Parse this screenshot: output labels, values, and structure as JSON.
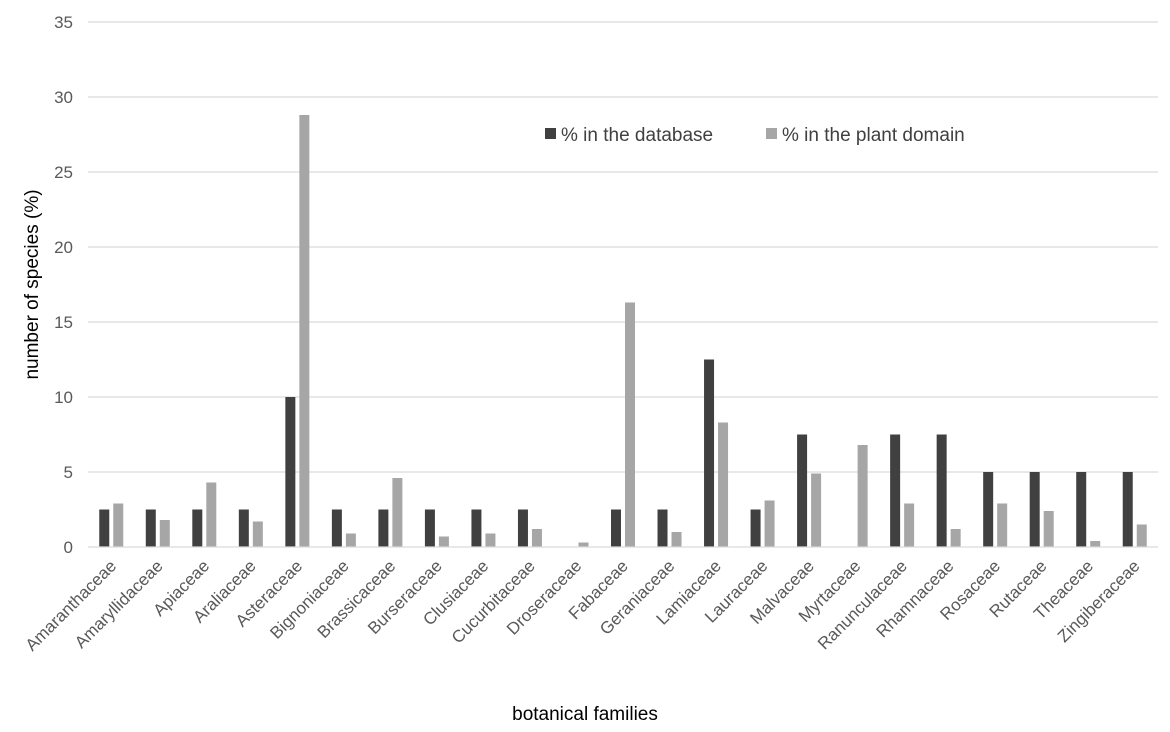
{
  "chart_data": {
    "type": "bar",
    "title": "",
    "xlabel": "botanical families",
    "ylabel": "number of species (%)",
    "ylim": [
      0,
      35
    ],
    "yticks": [
      0,
      5,
      10,
      15,
      20,
      25,
      30,
      35
    ],
    "grid": true,
    "legend_position": "top-right",
    "categories": [
      "Amaranthaceae",
      "Amaryllidaceae",
      "Apiaceae",
      "Araliaceae",
      "Asteraceae",
      "Bignoniaceae",
      "Brassicaceae",
      "Burseraceae",
      "Clusiaceae",
      "Cucurbitaceae",
      "Droseraceae",
      "Fabaceae",
      "Geraniaceae",
      "Lamiaceae",
      "Lauraceae",
      "Malvaceae",
      "Myrtaceae",
      "Ranunculaceae",
      "Rhamnaceae",
      "Rosaceae",
      "Rutaceae",
      "Theaceae",
      "Zingiberaceae"
    ],
    "series": [
      {
        "name": "% in the database",
        "color": "#404040",
        "values": [
          2.5,
          2.5,
          2.5,
          2.5,
          10,
          2.5,
          2.5,
          2.5,
          2.5,
          2.5,
          0,
          2.5,
          2.5,
          12.5,
          2.5,
          7.5,
          0,
          7.5,
          7.5,
          5,
          5,
          5,
          5
        ]
      },
      {
        "name": "% in the plant domain",
        "color": "#a6a6a6",
        "values": [
          2.9,
          1.8,
          4.3,
          1.7,
          28.8,
          0.9,
          4.6,
          0.7,
          0.9,
          1.2,
          0.3,
          16.3,
          1.0,
          8.3,
          3.1,
          4.9,
          6.8,
          2.9,
          1.2,
          2.9,
          2.4,
          0.4,
          1.5
        ]
      }
    ]
  }
}
